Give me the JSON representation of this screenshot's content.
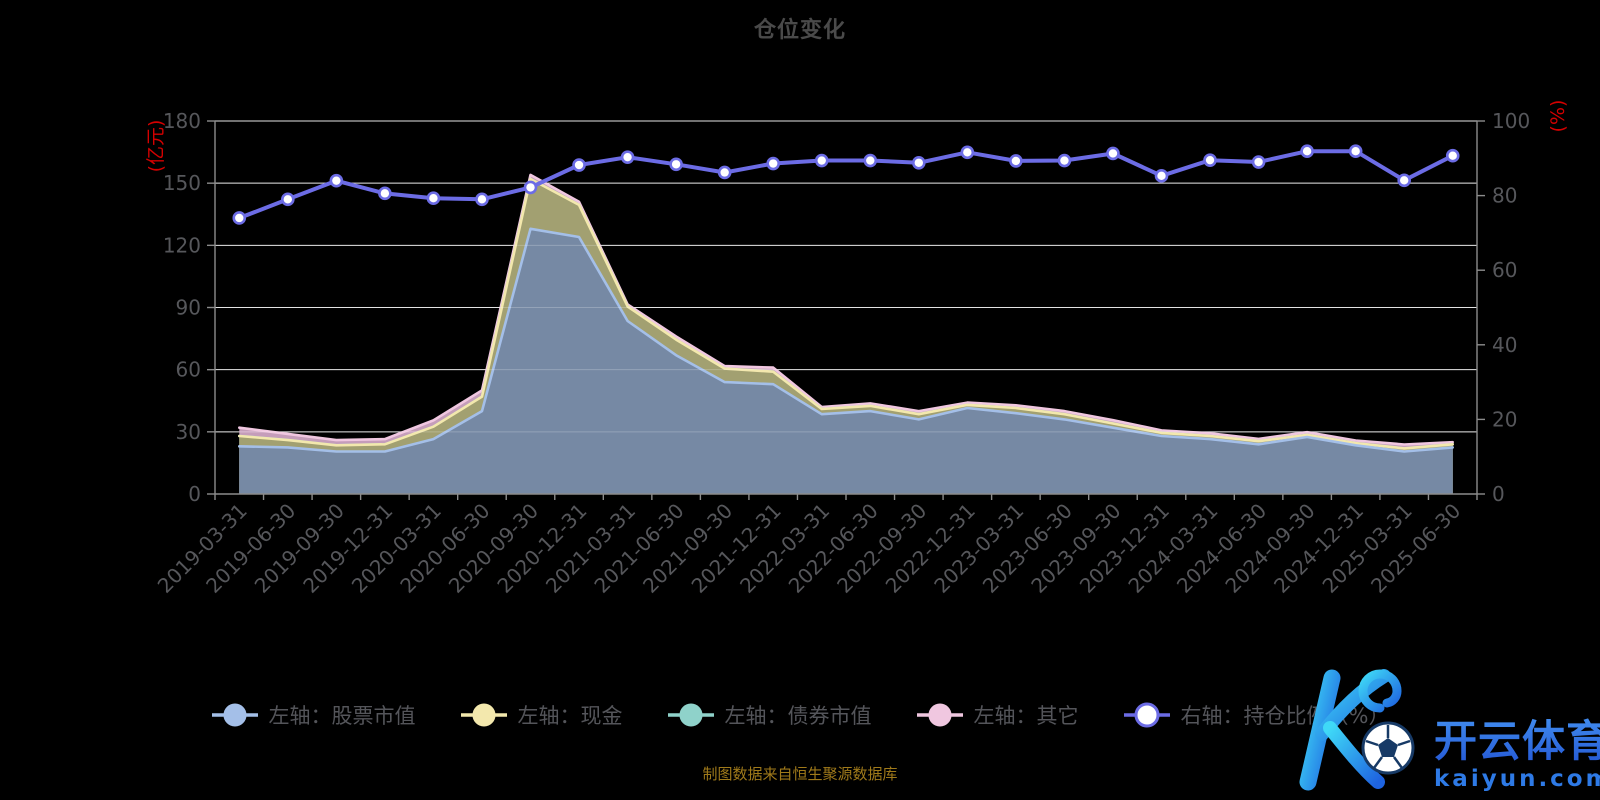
{
  "title": "仓位变化",
  "caption": "制图数据来自恒生聚源数据库",
  "watermark": {
    "logo_letter": "K",
    "brand": "开云体育",
    "domain": "kaiyun.com"
  },
  "left_axis": {
    "name": "(亿元)",
    "min": 0,
    "max": 180,
    "ticks": [
      0,
      30,
      60,
      90,
      120,
      150,
      180
    ],
    "name_color": "#d40000",
    "label_color": "#56575b"
  },
  "right_axis": {
    "name": "(%)",
    "min": 0,
    "max": 100,
    "ticks": [
      0,
      20,
      40,
      60,
      80,
      100
    ],
    "name_color": "#d40000",
    "label_color": "#56575b"
  },
  "colors": {
    "background": "#000000",
    "gridline": "#dcdcdc",
    "axis_line": "#8c8c8c",
    "title_text": "#4a4a4a",
    "legend_text": "#54555a",
    "caption_text": "#a07a1a",
    "watermark_blue": "#2e6fe0",
    "watermark_cyan": "#3fd9f7"
  },
  "chart_data": {
    "type": "area",
    "subtype": "stacked-area-with-line",
    "grid": true,
    "legend_position": "bottom",
    "x": [
      "2019-03-31",
      "2019-06-30",
      "2019-09-30",
      "2019-12-31",
      "2020-03-31",
      "2020-06-30",
      "2020-09-30",
      "2020-12-31",
      "2021-03-31",
      "2021-06-30",
      "2021-09-30",
      "2021-12-31",
      "2022-03-31",
      "2022-06-30",
      "2022-09-30",
      "2022-12-31",
      "2023-03-31",
      "2023-06-30",
      "2023-09-30",
      "2023-12-31",
      "2024-03-31",
      "2024-06-30",
      "2024-09-30",
      "2024-12-31",
      "2025-03-31",
      "2025-06-30"
    ],
    "series": [
      {
        "name": "左轴：股票市值",
        "axis": "left",
        "type": "area",
        "stack": true,
        "color": "#7288a8",
        "border_color": "#a4bfe8",
        "values": [
          23,
          22.5,
          20.5,
          20.5,
          26.5,
          40,
          128,
          124,
          83.5,
          67,
          54,
          53,
          38.5,
          40,
          36,
          41.5,
          39,
          36,
          32,
          28,
          26.5,
          24,
          27.5,
          23.5,
          20.5,
          22.5
        ]
      },
      {
        "name": "左轴：现金",
        "axis": "left",
        "type": "area",
        "stack": true,
        "color": "#a49c6a",
        "border_color": "#f3e8ad",
        "values": [
          5,
          3.5,
          3,
          3.5,
          6,
          7,
          24,
          15.5,
          7,
          7.5,
          6.5,
          6,
          2.5,
          2.5,
          2.5,
          1.5,
          2.5,
          2.5,
          2,
          1.5,
          1.5,
          1.5,
          1,
          1,
          1.5,
          1.5
        ]
      },
      {
        "name": "左轴：债券市值",
        "axis": "left",
        "type": "area",
        "stack": true,
        "color": "#8fd2ca",
        "border_color": "#8fd2ca",
        "values": [
          0,
          0,
          0,
          0,
          0,
          0,
          0,
          0,
          0,
          0,
          0,
          0,
          0,
          0,
          0,
          0,
          0,
          0,
          0,
          0,
          0,
          0,
          0,
          0,
          0,
          0
        ]
      },
      {
        "name": "左轴：其它",
        "axis": "left",
        "type": "area",
        "stack": true,
        "color": "#d4a9c8",
        "border_color": "#f0c7e0",
        "values": [
          4,
          3,
          2.5,
          2.5,
          3,
          3,
          2,
          1.5,
          1,
          1.5,
          1.2,
          2,
          1,
          1.2,
          1.5,
          1.1,
          1.3,
          1.5,
          1.6,
          1.2,
          1.3,
          1.1,
          1.3,
          1.3,
          1.9,
          1
        ]
      },
      {
        "name": "右轴：持仓比例（%）",
        "axis": "right",
        "type": "line",
        "color": "#6c6ce5",
        "marker_fill": "#ffffff",
        "values": [
          74,
          79,
          84,
          80.6,
          79.3,
          79,
          82.2,
          88.2,
          90.3,
          88.4,
          86.2,
          88.6,
          89.4,
          89.4,
          88.8,
          91.6,
          89.3,
          89.4,
          91.3,
          85.3,
          89.5,
          89,
          91.9,
          91.9,
          84.1,
          90.7
        ]
      }
    ]
  }
}
